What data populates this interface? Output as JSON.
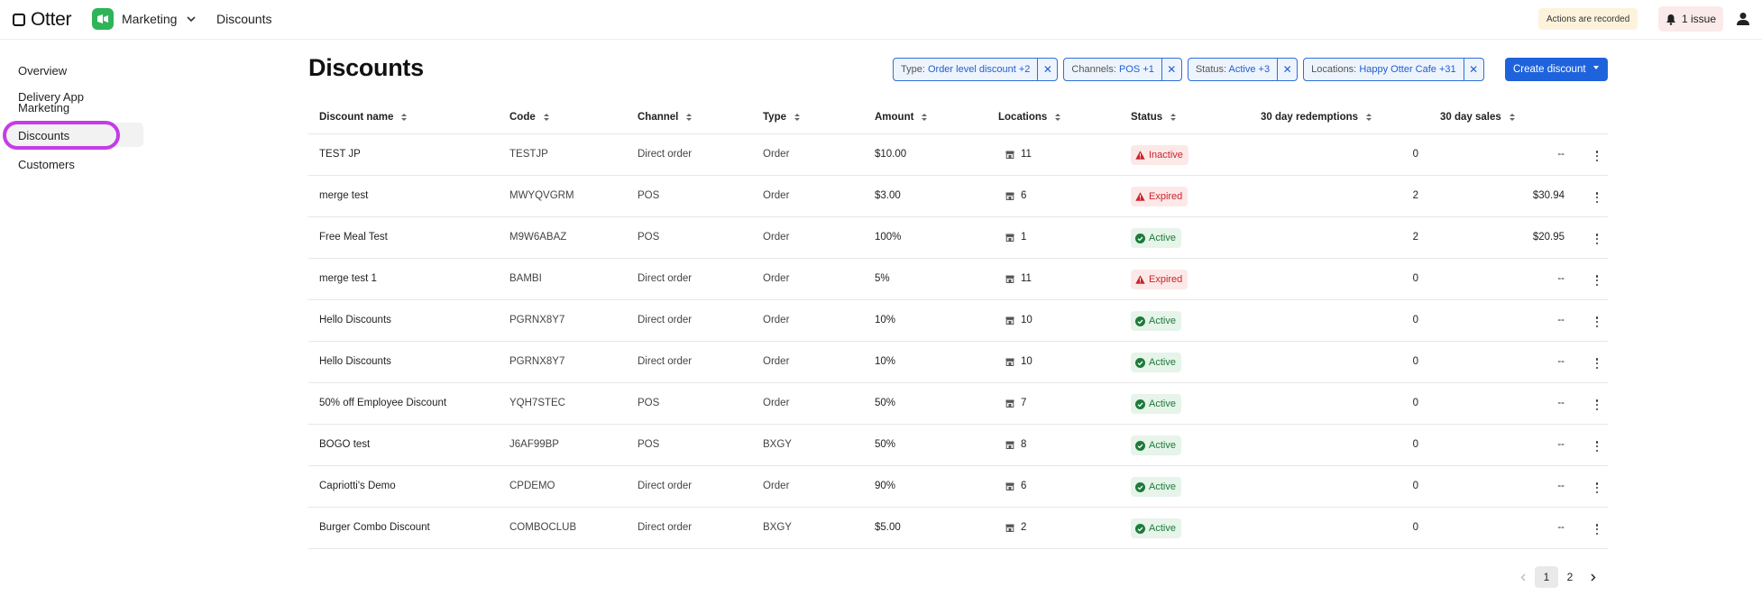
{
  "header": {
    "brand": "Otter",
    "app_name": "Marketing",
    "breadcrumb": "Discounts",
    "recorded_notice": "Actions are recorded",
    "issues_label": "1 issue",
    "app_color": "#2fb457"
  },
  "sidebar": {
    "items": [
      {
        "label": "Overview"
      },
      {
        "label": "Delivery App Marketing"
      },
      {
        "label": "Discounts",
        "active": true
      },
      {
        "label": "Customers"
      }
    ]
  },
  "main": {
    "title": "Discounts",
    "filters": [
      {
        "key": "Type:",
        "value": "Order level discount +2"
      },
      {
        "key": "Channels:",
        "value": "POS +1"
      },
      {
        "key": "Status:",
        "value": "Active +3"
      },
      {
        "key": "Locations:",
        "value": "Happy Otter Cafe +31"
      }
    ],
    "create_button": "Create discount"
  },
  "table": {
    "columns": [
      "Discount name",
      "Code",
      "Channel",
      "Type",
      "Amount",
      "Locations",
      "Status",
      "30 day redemptions",
      "30 day sales"
    ],
    "rows": [
      {
        "name": "TEST JP",
        "code": "TESTJP",
        "channel": "Direct order",
        "type": "Order",
        "amount": "$10.00",
        "locations": "11",
        "status": "Inactive",
        "redemptions": "0",
        "sales": "--"
      },
      {
        "name": "merge test",
        "code": "MWYQVGRM",
        "channel": "POS",
        "type": "Order",
        "amount": "$3.00",
        "locations": "6",
        "status": "Expired",
        "redemptions": "2",
        "sales": "$30.94"
      },
      {
        "name": "Free Meal Test",
        "code": "M9W6ABAZ",
        "channel": "POS",
        "type": "Order",
        "amount": "100%",
        "locations": "1",
        "status": "Active",
        "redemptions": "2",
        "sales": "$20.95"
      },
      {
        "name": "merge test 1",
        "code": "BAMBI",
        "channel": "Direct order",
        "type": "Order",
        "amount": "5%",
        "locations": "11",
        "status": "Expired",
        "redemptions": "0",
        "sales": "--"
      },
      {
        "name": "Hello Discounts",
        "code": "PGRNX8Y7",
        "channel": "Direct order",
        "type": "Order",
        "amount": "10%",
        "locations": "10",
        "status": "Active",
        "redemptions": "0",
        "sales": "--"
      },
      {
        "name": "Hello Discounts",
        "code": "PGRNX8Y7",
        "channel": "Direct order",
        "type": "Order",
        "amount": "10%",
        "locations": "10",
        "status": "Active",
        "redemptions": "0",
        "sales": "--"
      },
      {
        "name": "50% off Employee Discount",
        "code": "YQH7STEC",
        "channel": "POS",
        "type": "Order",
        "amount": "50%",
        "locations": "7",
        "status": "Active",
        "redemptions": "0",
        "sales": "--"
      },
      {
        "name": "BOGO test",
        "code": "J6AF99BP",
        "channel": "POS",
        "type": "BXGY",
        "amount": "50%",
        "locations": "8",
        "status": "Active",
        "redemptions": "0",
        "sales": "--"
      },
      {
        "name": "Capriotti's Demo",
        "code": "CPDEMO",
        "channel": "Direct order",
        "type": "Order",
        "amount": "90%",
        "locations": "6",
        "status": "Active",
        "redemptions": "0",
        "sales": "--"
      },
      {
        "name": "Burger Combo Discount",
        "code": "COMBOCLUB",
        "channel": "Direct order",
        "type": "BXGY",
        "amount": "$5.00",
        "locations": "2",
        "status": "Active",
        "redemptions": "0",
        "sales": "--"
      }
    ]
  },
  "pagination": {
    "pages": [
      "1",
      "2"
    ],
    "current": "1"
  }
}
